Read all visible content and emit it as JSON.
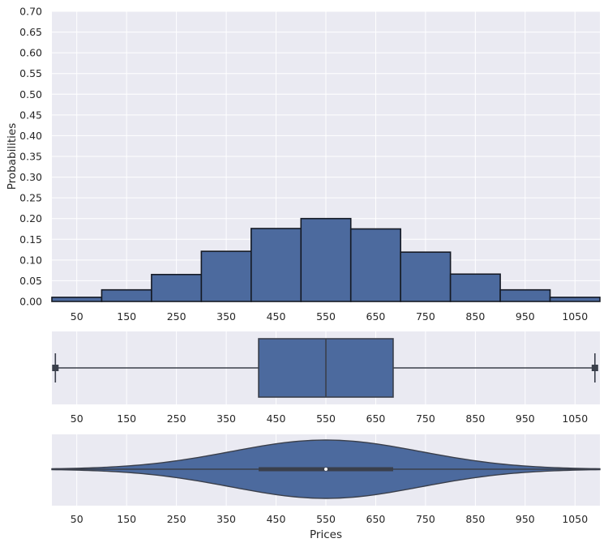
{
  "chart_data": [
    {
      "type": "bar",
      "panel": "histogram",
      "ylabel": "Probabilities",
      "xlabel": "",
      "ylim": [
        0,
        0.7
      ],
      "xlim": [
        0,
        1100
      ],
      "bin_width": 100,
      "bin_starts": [
        0,
        100,
        200,
        300,
        400,
        500,
        600,
        700,
        800,
        900,
        1000
      ],
      "values": [
        0.01,
        0.028,
        0.065,
        0.121,
        0.176,
        0.2,
        0.175,
        0.119,
        0.066,
        0.028,
        0.01
      ],
      "yticks": [
        "0.00",
        "0.05",
        "0.10",
        "0.15",
        "0.20",
        "0.25",
        "0.30",
        "0.35",
        "0.40",
        "0.45",
        "0.50",
        "0.55",
        "0.60",
        "0.65",
        "0.70"
      ],
      "xticks": [
        "50",
        "150",
        "250",
        "350",
        "450",
        "550",
        "650",
        "750",
        "850",
        "950",
        "1050"
      ],
      "bar_color": "#4c6a9e",
      "edge_color": "#151a24",
      "grid": true,
      "background": "#eaeaf2"
    },
    {
      "type": "box",
      "panel": "boxplot",
      "xlim": [
        0,
        1100
      ],
      "min": 7,
      "q1": 415,
      "median": 550,
      "q3": 685,
      "max": 1090,
      "xticks": [
        "50",
        "150",
        "250",
        "350",
        "450",
        "550",
        "650",
        "750",
        "850",
        "950",
        "1050"
      ],
      "box_color": "#4c6a9e",
      "line_color": "#3a3f4b",
      "grid": true
    },
    {
      "type": "violin",
      "panel": "violin",
      "xlabel": "Prices",
      "xlim": [
        0,
        1100
      ],
      "center": 550,
      "spread_sd": 190,
      "min": 0,
      "max": 1100,
      "q1": 415,
      "median": 550,
      "q3": 685,
      "xticks": [
        "50",
        "150",
        "250",
        "350",
        "450",
        "550",
        "650",
        "750",
        "850",
        "950",
        "1050"
      ],
      "fill_color": "#4c6a9e",
      "line_color": "#3a3f4b",
      "grid": true
    }
  ]
}
